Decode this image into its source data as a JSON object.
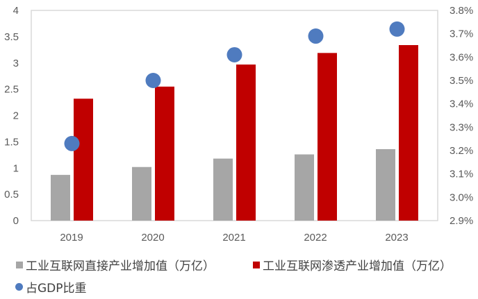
{
  "chart_data": {
    "type": "bar",
    "title": "",
    "xlabel": "",
    "ylabel": "",
    "categories": [
      "2019",
      "2020",
      "2021",
      "2022",
      "2023"
    ],
    "series": [
      {
        "name": "工业互联网直接产业增加值（万亿）",
        "type": "bar",
        "axis": "left",
        "color": "#A6A6A6",
        "values": [
          0.87,
          1.02,
          1.18,
          1.26,
          1.36
        ]
      },
      {
        "name": "工业互联网渗透产业增加值（万亿）",
        "type": "bar",
        "axis": "left",
        "color": "#C00000",
        "values": [
          2.32,
          2.55,
          2.97,
          3.19,
          3.34
        ]
      },
      {
        "name": "占GDP比重",
        "type": "scatter",
        "axis": "right",
        "color": "#4F7BBF",
        "values": [
          3.23,
          3.5,
          3.61,
          3.69,
          3.72
        ],
        "unit": "%"
      }
    ],
    "ylim": [
      0,
      4
    ],
    "y_ticks": [
      "0",
      "0.5",
      "1",
      "1.5",
      "2",
      "2.5",
      "3",
      "3.5",
      "4"
    ],
    "y2lim": [
      2.9,
      3.8
    ],
    "y2_ticks": [
      "2.9%",
      "3.0%",
      "3.1%",
      "3.2%",
      "3.3%",
      "3.4%",
      "3.5%",
      "3.6%",
      "3.7%",
      "3.8%"
    ],
    "grid": false,
    "legend_position": "bottom"
  },
  "legend": {
    "items": [
      {
        "label": "工业互联网直接产业增加值（万亿）",
        "color": "#A6A6A6",
        "shape": "square"
      },
      {
        "label": "工业互联网渗透产业增加值（万亿）",
        "color": "#C00000",
        "shape": "square"
      },
      {
        "label": "占GDP比重",
        "color": "#4F7BBF",
        "shape": "circle"
      }
    ]
  }
}
